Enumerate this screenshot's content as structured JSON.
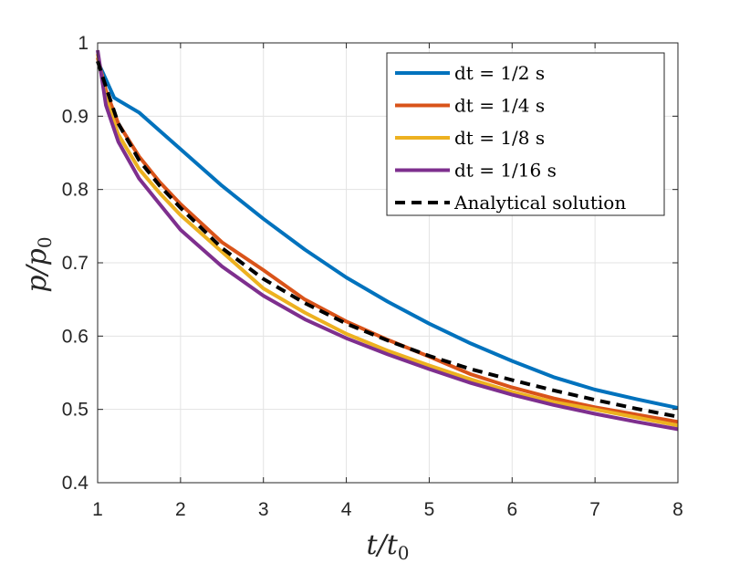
{
  "chart_data": {
    "type": "line",
    "xlabel": "t/t0",
    "ylabel": "p/p0",
    "xlim": [
      1,
      8
    ],
    "ylim": [
      0.4,
      1
    ],
    "xticks": [
      1,
      2,
      3,
      4,
      5,
      6,
      7,
      8
    ],
    "yticks": [
      0.4,
      0.5,
      0.6,
      0.7,
      0.8,
      0.9,
      1
    ],
    "ytick_labels": [
      "0.4",
      "0.5",
      "0.6",
      "0.7",
      "0.8",
      "0.9",
      "1"
    ],
    "grid": true,
    "legend_position": "top-right",
    "series": [
      {
        "name": "dt = 1/2 s",
        "color": "#0072BD",
        "dash": "solid",
        "x": [
          1.0,
          1.2,
          1.5,
          2,
          2.5,
          3,
          3.5,
          4,
          4.5,
          5,
          5.5,
          6,
          6.5,
          7,
          7.5,
          8
        ],
        "y": [
          0.975,
          0.925,
          0.905,
          0.855,
          0.805,
          0.76,
          0.718,
          0.68,
          0.647,
          0.617,
          0.59,
          0.566,
          0.544,
          0.527,
          0.514,
          0.502
        ]
      },
      {
        "name": "dt = 1/4 s",
        "color": "#D95319",
        "dash": "solid",
        "x": [
          1.0,
          1.1,
          1.25,
          1.5,
          1.75,
          2,
          2.5,
          3,
          3.5,
          4,
          4.5,
          5,
          5.5,
          6,
          6.5,
          7,
          7.5,
          8
        ],
        "y": [
          0.98,
          0.935,
          0.89,
          0.845,
          0.81,
          0.78,
          0.728,
          0.69,
          0.65,
          0.62,
          0.595,
          0.572,
          0.548,
          0.53,
          0.515,
          0.503,
          0.493,
          0.483
        ]
      },
      {
        "name": "dt = 1/8 s",
        "color": "#EDB120",
        "dash": "solid",
        "x": [
          1.0,
          1.1,
          1.25,
          1.5,
          1.75,
          2,
          2.5,
          3,
          3.5,
          4,
          4.5,
          5,
          5.5,
          6,
          6.5,
          7,
          7.5,
          8
        ],
        "y": [
          0.985,
          0.925,
          0.875,
          0.828,
          0.795,
          0.765,
          0.715,
          0.665,
          0.632,
          0.603,
          0.58,
          0.56,
          0.541,
          0.524,
          0.51,
          0.5,
          0.489,
          0.478
        ]
      },
      {
        "name": "dt = 1/16 s",
        "color": "#7E2F8E",
        "dash": "solid",
        "x": [
          1.0,
          1.1,
          1.25,
          1.5,
          1.75,
          2,
          2.5,
          3,
          3.5,
          4,
          4.5,
          5,
          5.5,
          6,
          6.5,
          7,
          7.5,
          8
        ],
        "y": [
          0.99,
          0.915,
          0.865,
          0.815,
          0.78,
          0.745,
          0.695,
          0.655,
          0.623,
          0.597,
          0.575,
          0.555,
          0.536,
          0.52,
          0.506,
          0.494,
          0.483,
          0.473
        ]
      },
      {
        "name": "Analytical solution",
        "color": "#000000",
        "dash": "dashed",
        "x": [
          1.0,
          1.1,
          1.25,
          1.5,
          1.75,
          2,
          2.5,
          3,
          3.5,
          4,
          4.5,
          5,
          5.5,
          6,
          6.5,
          7,
          7.5,
          8
        ],
        "y": [
          0.975,
          0.94,
          0.89,
          0.84,
          0.805,
          0.775,
          0.72,
          0.678,
          0.645,
          0.617,
          0.594,
          0.573,
          0.555,
          0.54,
          0.526,
          0.513,
          0.501,
          0.49
        ]
      }
    ]
  }
}
